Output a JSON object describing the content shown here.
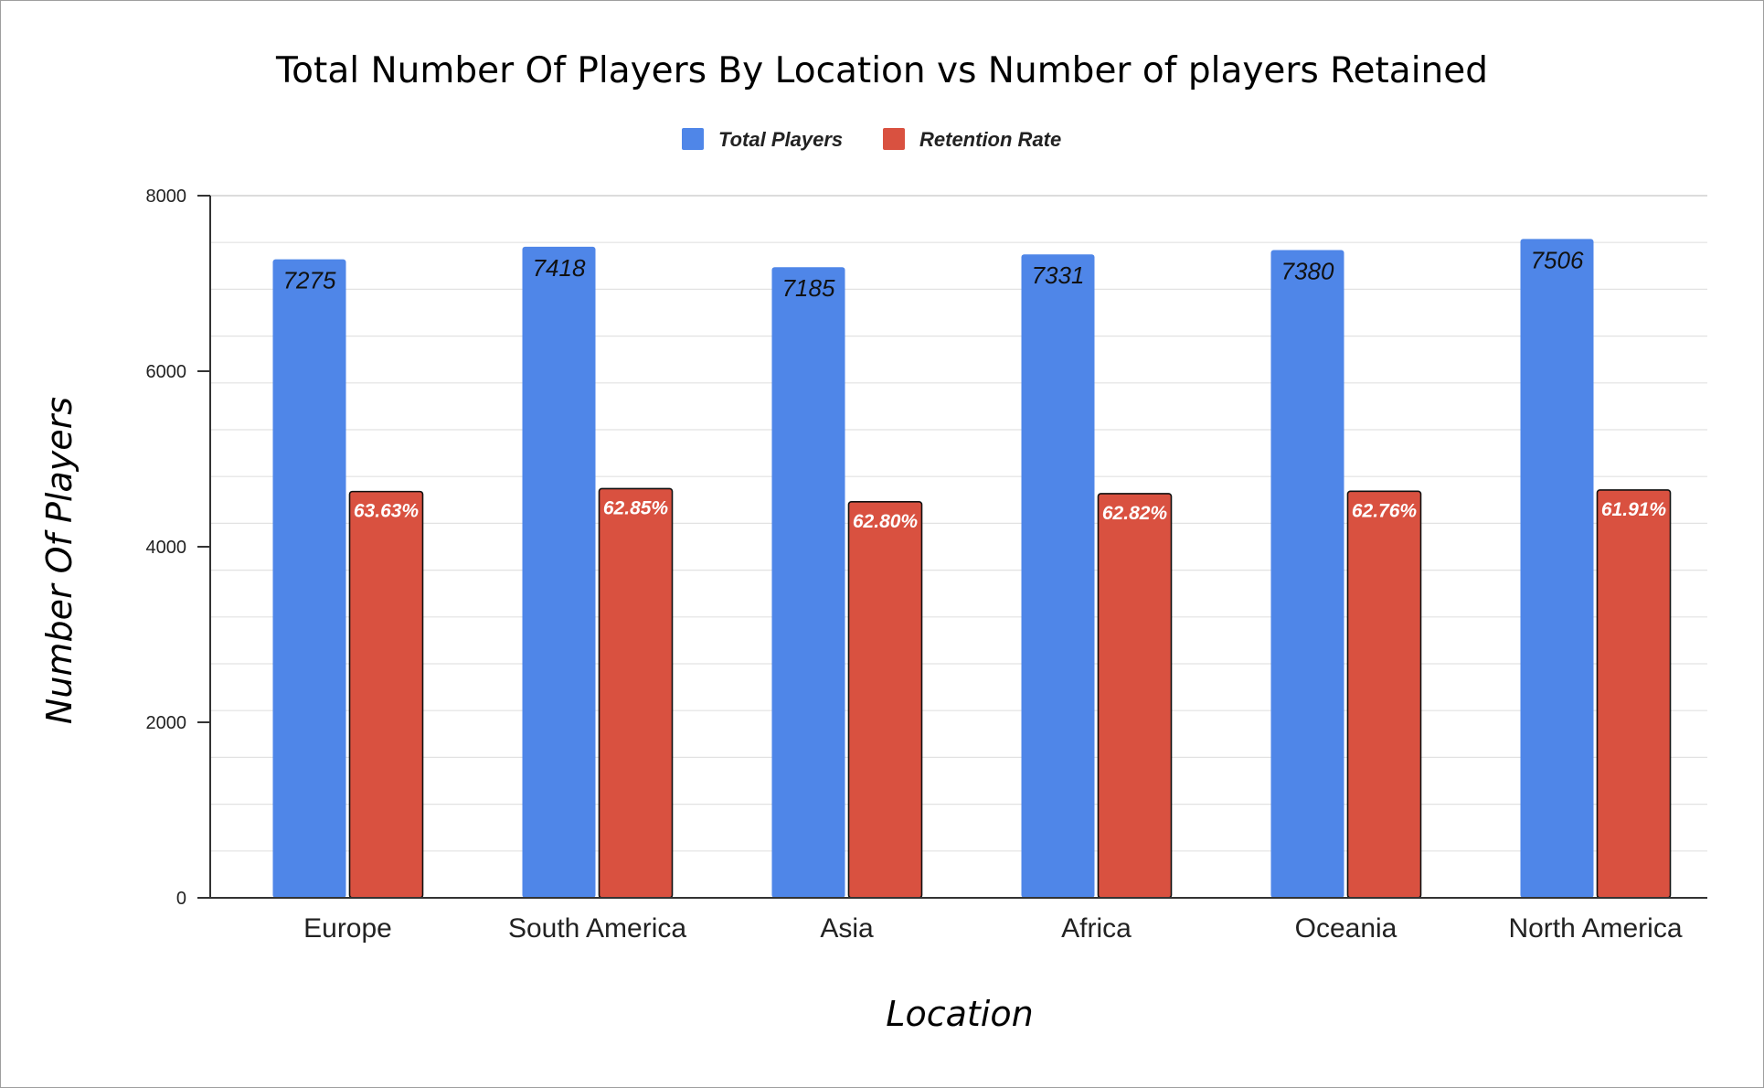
{
  "chart_data": {
    "type": "bar",
    "title": "Total Number Of Players By Location vs Number of players Retained",
    "xlabel": "Location",
    "ylabel": "Number Of Players",
    "ylim": [
      0,
      8000
    ],
    "yticks": [
      0,
      2000,
      4000,
      6000,
      8000
    ],
    "grid": true,
    "legend_position": "top-center",
    "categories": [
      "Europe",
      "South America",
      "Asia",
      "Africa",
      "Oceania",
      "North America"
    ],
    "series": [
      {
        "name": "Total Players",
        "color": "#4f86e8",
        "values": [
          7275,
          7418,
          7185,
          7331,
          7380,
          7506
        ],
        "labels": [
          "7275",
          "7418",
          "7185",
          "7331",
          "7380",
          "7506"
        ]
      },
      {
        "name": "Retention Rate",
        "color": "#d95140",
        "values": [
          4629,
          4662,
          4512,
          4605,
          4632,
          4647
        ],
        "labels": [
          "63.63%",
          "62.85%",
          "62.80%",
          "62.82%",
          "62.76%",
          "61.91%"
        ]
      }
    ]
  }
}
